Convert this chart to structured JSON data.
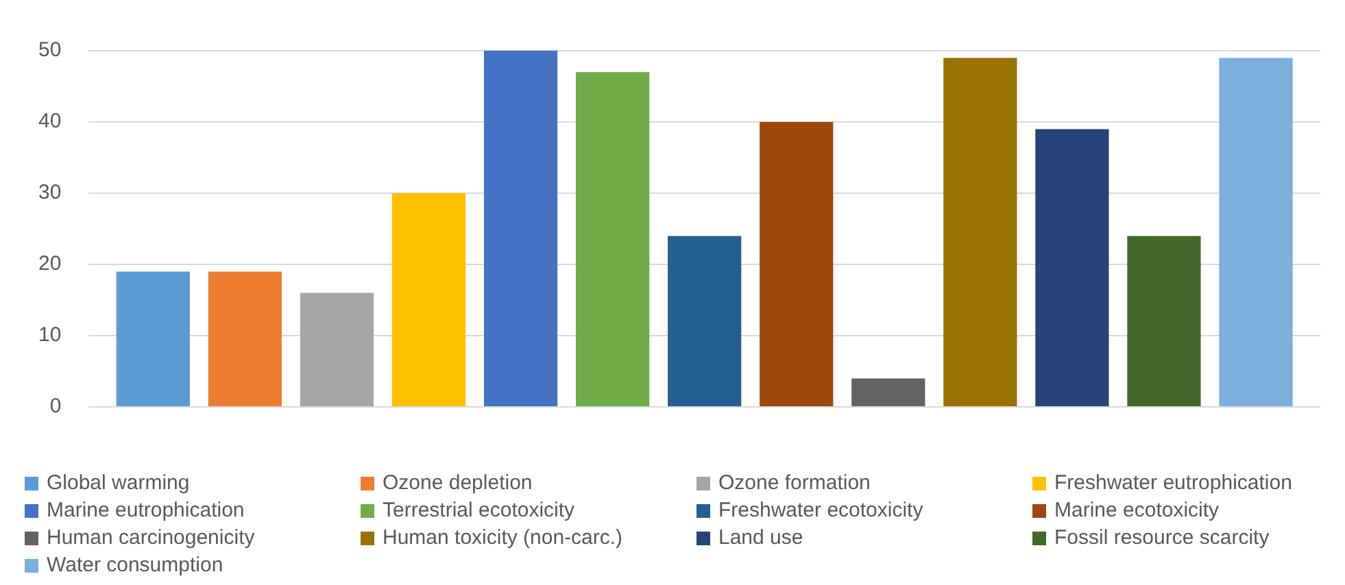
{
  "chart_data": {
    "type": "bar",
    "categories": [
      null
    ],
    "series": [
      {
        "name": "Global warming",
        "color": "#5b9bd5",
        "values": [
          19
        ]
      },
      {
        "name": "Ozone depletion",
        "color": "#ed7d31",
        "values": [
          19
        ]
      },
      {
        "name": "Ozone formation",
        "color": "#a5a5a5",
        "values": [
          16
        ]
      },
      {
        "name": "Freshwater eutrophication",
        "color": "#ffc000",
        "values": [
          30
        ]
      },
      {
        "name": "Marine eutrophication",
        "color": "#4472c4",
        "values": [
          50
        ]
      },
      {
        "name": "Terrestrial ecotoxicity",
        "color": "#70ad47",
        "values": [
          47
        ]
      },
      {
        "name": "Freshwater ecotoxicity",
        "color": "#255e91",
        "values": [
          24
        ]
      },
      {
        "name": "Marine ecotoxicity",
        "color": "#9e480e",
        "values": [
          40
        ]
      },
      {
        "name": "Human carcinogenicity",
        "color": "#636363",
        "values": [
          4
        ]
      },
      {
        "name": "Human toxicity (non-carc.)",
        "color": "#997300",
        "values": [
          49
        ]
      },
      {
        "name": "Land use",
        "color": "#264478",
        "values": [
          39
        ]
      },
      {
        "name": "Fossil resource scarcity",
        "color": "#43682b",
        "values": [
          24
        ]
      },
      {
        "name": "Water consumption",
        "color": "#7cafdd",
        "values": [
          49
        ]
      }
    ],
    "ylim": [
      0,
      50
    ],
    "yticks": [
      0,
      10,
      20,
      30,
      40,
      50
    ],
    "grid": "y",
    "legend": "bottom"
  }
}
